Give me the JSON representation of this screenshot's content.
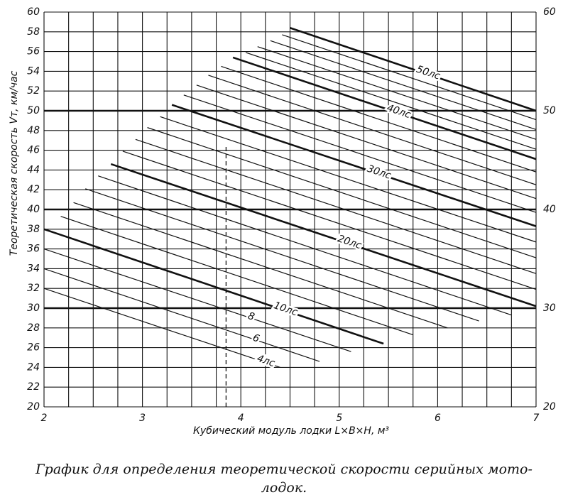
{
  "chart_data": {
    "type": "nomogram",
    "xlabel": "Кубический модуль лодки L×B×H, м³",
    "ylabel": "Теоретическая скорость Vт, км/час",
    "caption": [
      "График для определения теоретической скорости серийных мото-",
      "лодок."
    ],
    "xlim": [
      2,
      7
    ],
    "xticks": [
      2,
      3,
      4,
      5,
      6,
      7
    ],
    "ylim": [
      20,
      60
    ],
    "yticks": [
      20,
      22,
      24,
      26,
      28,
      30,
      32,
      34,
      36,
      38,
      40,
      42,
      44,
      46,
      48,
      50,
      52,
      54,
      56,
      58,
      60
    ],
    "y2lim": [
      20,
      60
    ],
    "y2ticks": [
      20,
      30,
      40,
      50,
      60
    ],
    "xgrid": [
      2,
      2.25,
      2.5,
      2.75,
      3,
      3.25,
      3.5,
      3.75,
      4,
      4.25,
      4.5,
      4.75,
      5,
      5.25,
      5.5,
      5.75,
      6,
      6.25,
      6.5,
      6.75,
      7
    ],
    "thick_y": [
      30,
      40,
      50
    ],
    "color": "#111111",
    "reference": {
      "x": [
        3.85,
        3.85
      ],
      "values": [
        20,
        46.5
      ]
    },
    "series": [
      {
        "name": "4лс",
        "width": 1.2,
        "x": [
          2,
          4.4
        ],
        "values": [
          32,
          24
        ]
      },
      {
        "name": "6",
        "width": 1.2,
        "x": [
          2,
          4.8
        ],
        "values": [
          34,
          24.6
        ]
      },
      {
        "name": "8",
        "width": 1.2,
        "x": [
          2,
          5.12
        ],
        "values": [
          36,
          25.6
        ]
      },
      {
        "name": "10лс",
        "width": 2.6,
        "x": [
          2,
          5.45
        ],
        "values": [
          38,
          26.4
        ]
      },
      {
        "width": 1.2,
        "x": [
          2.17,
          5.75
        ],
        "values": [
          39.3,
          27.3
        ]
      },
      {
        "width": 1.2,
        "x": [
          2.3,
          6.1
        ],
        "values": [
          40.7,
          28
        ]
      },
      {
        "width": 1.2,
        "x": [
          2.42,
          6.42
        ],
        "values": [
          42.1,
          28.7
        ]
      },
      {
        "width": 1.2,
        "x": [
          2.55,
          6.75
        ],
        "values": [
          43.4,
          29.3
        ]
      },
      {
        "name": "20лс",
        "width": 2.6,
        "x": [
          2.68,
          7
        ],
        "values": [
          44.6,
          30.2
        ]
      },
      {
        "width": 1.2,
        "x": [
          2.8,
          7
        ],
        "values": [
          45.9,
          31.9
        ]
      },
      {
        "width": 1.2,
        "x": [
          2.93,
          7
        ],
        "values": [
          47.1,
          33.5
        ]
      },
      {
        "width": 1.2,
        "x": [
          3.05,
          7
        ],
        "values": [
          48.3,
          35.1
        ]
      },
      {
        "width": 1.2,
        "x": [
          3.18,
          7
        ],
        "values": [
          49.4,
          36.7
        ]
      },
      {
        "name": "30лс",
        "width": 2.6,
        "x": [
          3.3,
          7
        ],
        "values": [
          50.6,
          38.3
        ]
      },
      {
        "width": 1.2,
        "x": [
          3.42,
          7
        ],
        "values": [
          51.6,
          39.7
        ]
      },
      {
        "width": 1.2,
        "x": [
          3.55,
          7
        ],
        "values": [
          52.6,
          41.1
        ]
      },
      {
        "width": 1.2,
        "x": [
          3.67,
          7
        ],
        "values": [
          53.6,
          42.5
        ]
      },
      {
        "width": 1.2,
        "x": [
          3.8,
          7
        ],
        "values": [
          54.5,
          43.8
        ]
      },
      {
        "name": "40лс",
        "width": 2.6,
        "x": [
          3.92,
          7
        ],
        "values": [
          55.4,
          45.1
        ]
      },
      {
        "width": 1.2,
        "x": [
          4.05,
          7
        ],
        "values": [
          55.9,
          46.1
        ]
      },
      {
        "width": 1.2,
        "x": [
          4.17,
          7
        ],
        "values": [
          56.5,
          47.1
        ]
      },
      {
        "width": 1.2,
        "x": [
          4.3,
          7
        ],
        "values": [
          57.1,
          48.1
        ]
      },
      {
        "width": 1.2,
        "x": [
          4.42,
          7
        ],
        "values": [
          57.7,
          49.1
        ]
      },
      {
        "name": "50лс",
        "width": 2.6,
        "x": [
          4.5,
          7
        ],
        "values": [
          58.4,
          50
        ]
      }
    ]
  }
}
